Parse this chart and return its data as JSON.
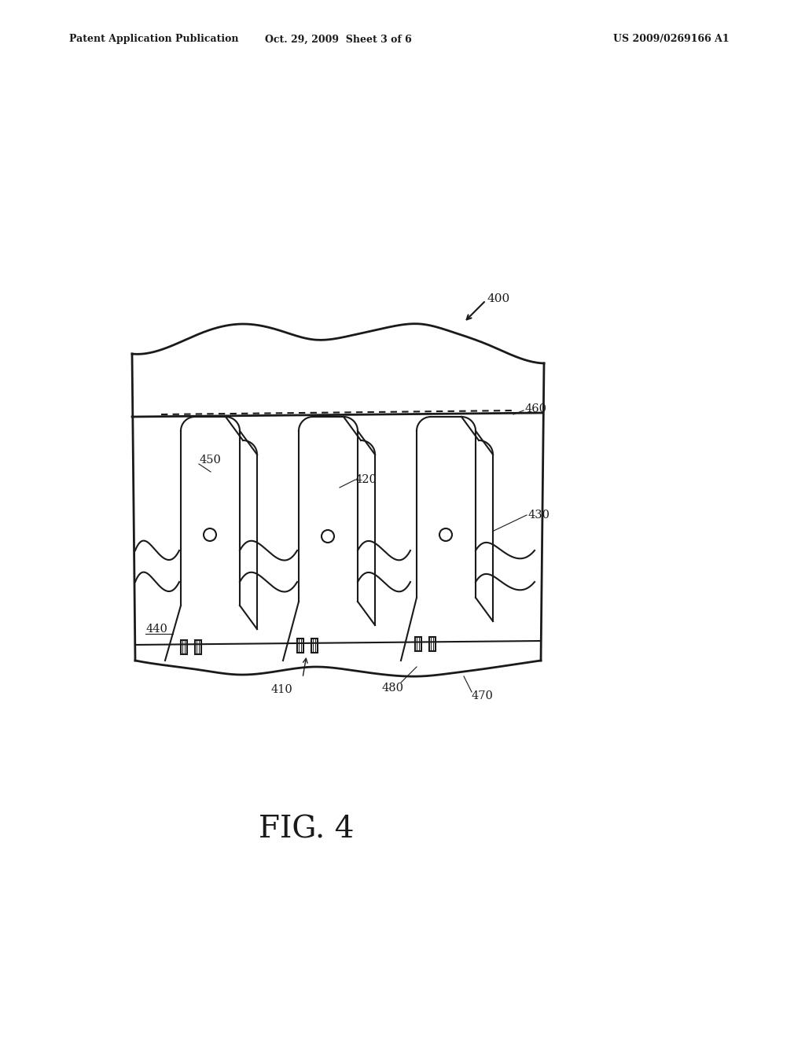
{
  "bg_color": "#ffffff",
  "line_color": "#1a1a1a",
  "header_left": "Patent Application Publication",
  "header_center": "Oct. 29, 2009  Sheet 3 of 6",
  "header_right": "US 2009/0269166 A1",
  "fig_label": "FIG. 4",
  "ref_400": "400",
  "ref_410": "410",
  "ref_420": "420",
  "ref_430": "430",
  "ref_440": "440",
  "ref_450": "450",
  "ref_460": "460",
  "ref_470": "470",
  "ref_480": "480"
}
